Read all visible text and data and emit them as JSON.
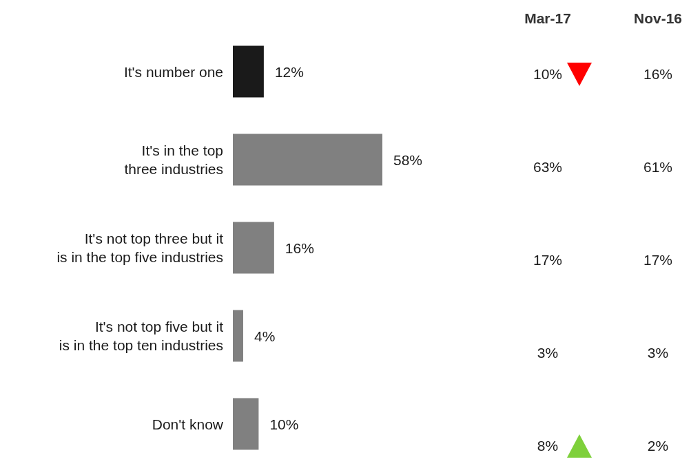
{
  "chart_data": [
    {
      "type": "bar",
      "orientation": "horizontal",
      "categories": [
        "It's number one",
        "It's in the top\nthree industries",
        "It's not top three but it\nis in the top five industries",
        "It's not top five but it\nis in the top ten industries",
        "Don't know"
      ],
      "series": [
        {
          "colors": [
            "#1a1a1a",
            "#808080",
            "#808080",
            "#808080",
            "#808080"
          ],
          "values": [
            12,
            58,
            16,
            4,
            10
          ],
          "value_labels": [
            "12%",
            "58%",
            "16%",
            "4%",
            "10%"
          ]
        }
      ],
      "tick_labels": "y",
      "grid": false
    },
    {
      "type": "other",
      "annotations": [
        "Mar-17",
        "Nov-16",
        "10%",
        "16%",
        "63%",
        "61%",
        "17%",
        "17%",
        "3%",
        "3%",
        "8%",
        "2%"
      ]
    }
  ]
}
